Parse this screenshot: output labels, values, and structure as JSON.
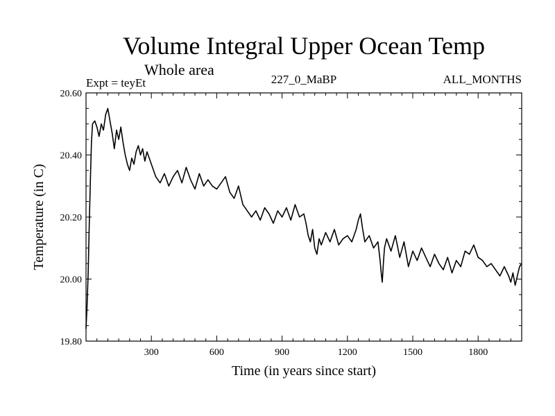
{
  "chart_data": {
    "type": "line",
    "title": "Volume Integral Upper Ocean Temp",
    "subtitle": "Whole area",
    "experiment_label": "Expt = teyEt",
    "period_label": "227_0_MaBP",
    "months_label": "ALL_MONTHS",
    "xlabel": "Time (in years since start)",
    "ylabel": "Temperature (in C)",
    "xlim": [
      0,
      2000
    ],
    "ylim": [
      19.8,
      20.6
    ],
    "x_ticks": [
      300,
      600,
      900,
      1200,
      1500,
      1800
    ],
    "x_tick_labels": [
      "300",
      "600",
      "900",
      "1200",
      "1500",
      "1800"
    ],
    "y_ticks": [
      19.8,
      20.0,
      20.2,
      20.4,
      20.6
    ],
    "y_tick_labels": [
      "19.80",
      "20.00",
      "20.20",
      "20.40",
      "20.60"
    ],
    "grid": false,
    "series": [
      {
        "name": "Volume integral upper ocean temperature",
        "color": "#000000",
        "x": [
          0,
          5,
          10,
          15,
          20,
          25,
          30,
          40,
          50,
          60,
          70,
          80,
          90,
          100,
          110,
          120,
          130,
          140,
          150,
          160,
          170,
          180,
          190,
          200,
          210,
          220,
          230,
          240,
          250,
          260,
          270,
          280,
          290,
          300,
          320,
          340,
          360,
          380,
          400,
          420,
          440,
          460,
          480,
          500,
          520,
          540,
          560,
          580,
          600,
          620,
          640,
          660,
          680,
          700,
          720,
          740,
          760,
          780,
          800,
          820,
          840,
          860,
          880,
          900,
          920,
          940,
          960,
          980,
          1000,
          1010,
          1020,
          1030,
          1040,
          1050,
          1060,
          1070,
          1080,
          1100,
          1120,
          1140,
          1160,
          1180,
          1200,
          1220,
          1240,
          1250,
          1260,
          1270,
          1280,
          1300,
          1320,
          1340,
          1350,
          1355,
          1360,
          1365,
          1370,
          1380,
          1400,
          1420,
          1440,
          1460,
          1480,
          1500,
          1520,
          1540,
          1560,
          1580,
          1600,
          1620,
          1640,
          1660,
          1680,
          1700,
          1720,
          1740,
          1760,
          1780,
          1800,
          1820,
          1840,
          1860,
          1880,
          1900,
          1920,
          1940,
          1950,
          1960,
          1970,
          1980,
          1990,
          2000
        ],
        "values": [
          19.84,
          19.92,
          20.02,
          20.18,
          20.32,
          20.44,
          20.5,
          20.51,
          20.49,
          20.46,
          20.5,
          20.48,
          20.53,
          20.55,
          20.51,
          20.47,
          20.42,
          20.48,
          20.45,
          20.49,
          20.44,
          20.4,
          20.37,
          20.35,
          20.39,
          20.37,
          20.41,
          20.43,
          20.4,
          20.42,
          20.38,
          20.41,
          20.39,
          20.37,
          20.33,
          20.31,
          20.34,
          20.3,
          20.33,
          20.35,
          20.31,
          20.36,
          20.32,
          20.29,
          20.34,
          20.3,
          20.32,
          20.3,
          20.29,
          20.31,
          20.33,
          20.28,
          20.26,
          20.3,
          20.24,
          20.22,
          20.2,
          20.22,
          20.19,
          20.23,
          20.21,
          20.18,
          20.22,
          20.2,
          20.23,
          20.19,
          20.24,
          20.2,
          20.21,
          20.18,
          20.14,
          20.12,
          20.16,
          20.1,
          20.08,
          20.13,
          20.11,
          20.15,
          20.12,
          20.16,
          20.11,
          20.13,
          20.14,
          20.12,
          20.16,
          20.19,
          20.21,
          20.16,
          20.12,
          20.14,
          20.1,
          20.12,
          20.06,
          20.02,
          19.99,
          20.05,
          20.1,
          20.13,
          20.09,
          20.14,
          20.07,
          20.12,
          20.04,
          20.09,
          20.06,
          20.1,
          20.07,
          20.04,
          20.08,
          20.05,
          20.03,
          20.07,
          20.02,
          20.06,
          20.04,
          20.09,
          20.08,
          20.11,
          20.07,
          20.06,
          20.04,
          20.05,
          20.03,
          20.01,
          20.04,
          20.01,
          19.99,
          20.02,
          19.98,
          20.01,
          20.04,
          20.05
        ]
      }
    ]
  }
}
